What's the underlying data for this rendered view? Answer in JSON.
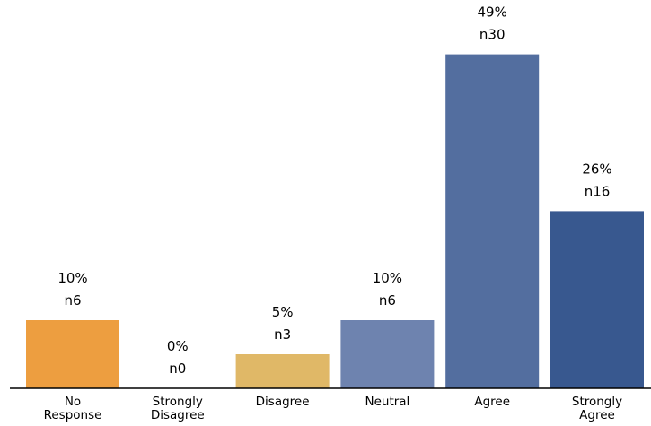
{
  "chart_data": {
    "type": "bar",
    "title": "",
    "xlabel": "",
    "ylabel": "",
    "ylim": [
      0,
      50
    ],
    "grid": false,
    "categories": [
      [
        "No",
        "Response"
      ],
      [
        "Strongly",
        "Disagree"
      ],
      [
        "Disagree"
      ],
      [
        "Neutral"
      ],
      [
        "Agree"
      ],
      [
        "Strongly",
        "Agree"
      ]
    ],
    "values": [
      10,
      0,
      5,
      10,
      49,
      26
    ],
    "percent_labels": [
      "10%",
      "0%",
      "5%",
      "10%",
      "49%",
      "26%"
    ],
    "count_labels": [
      "n6",
      "n0",
      "n3",
      "n6",
      "n30",
      "n16"
    ],
    "colors": [
      "#ED9E40",
      "#ED9E40",
      "#E0B867",
      "#6E83AF",
      "#536E9F",
      "#38588F"
    ]
  }
}
